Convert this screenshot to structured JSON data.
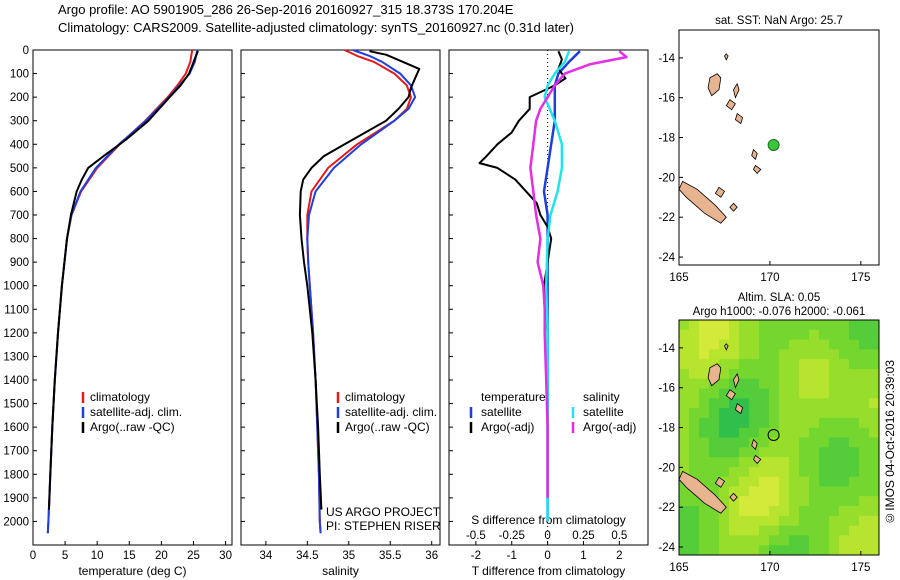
{
  "header": {
    "line1": "Argo profile: AO 5901905_286 26-Sep-2016 20160927_315 18.373S 170.204E",
    "line2": "Climatology: CARS2009. Satellite-adjusted climatology: synTS_20160927.nc (0.31d later)"
  },
  "stamp": "©IMOS 04-Oct-2016 20:39:03",
  "colors": {
    "red": "#e41a1c",
    "blue": "#1f3fd8",
    "black": "#000000",
    "cyan": "#21e4e9",
    "magenta": "#e42de4",
    "land": "#e8b48f",
    "float": "#3cc43c"
  },
  "chart_data": [
    {
      "type": "line",
      "ylim": [
        2100,
        0
      ],
      "yticks": [
        0,
        100,
        200,
        300,
        400,
        500,
        600,
        700,
        800,
        900,
        1000,
        1100,
        1200,
        1300,
        1400,
        1500,
        1600,
        1700,
        1800,
        1900,
        2000
      ],
      "xlim": [
        0,
        31
      ],
      "xticks": [
        0,
        5,
        10,
        15,
        20,
        25,
        30
      ],
      "xlabel": "temperature (deg C)",
      "legend": [
        "climatology",
        "satellite-adj. clim.",
        "Argo(..raw -QC)"
      ],
      "series": [
        {
          "name": "climatology",
          "color": "red",
          "depth": [
            0,
            50,
            100,
            150,
            200,
            300,
            400,
            500,
            600,
            700,
            800,
            1000,
            1200,
            1400,
            1600,
            1800,
            2000,
            2050
          ],
          "values": [
            24.8,
            24.5,
            23.8,
            22.5,
            21.0,
            17.5,
            13.5,
            10.0,
            7.5,
            6.0,
            5.3,
            4.5,
            3.9,
            3.4,
            3.0,
            2.7,
            2.4,
            2.3
          ]
        },
        {
          "name": "satellite-adj. clim.",
          "color": "blue",
          "depth": [
            0,
            50,
            100,
            150,
            200,
            300,
            400,
            500,
            600,
            700,
            800,
            1000,
            1200,
            1400,
            1600,
            1800,
            2000,
            2050
          ],
          "values": [
            25.6,
            25.2,
            24.4,
            22.8,
            21.2,
            17.6,
            13.4,
            9.8,
            7.4,
            6.0,
            5.3,
            4.5,
            3.9,
            3.4,
            3.0,
            2.7,
            2.4,
            2.3
          ]
        },
        {
          "name": "Argo(..raw -QC)",
          "color": "black",
          "depth": [
            5,
            30,
            60,
            100,
            150,
            200,
            300,
            380,
            450,
            500,
            550,
            600,
            700,
            800,
            1000,
            1200,
            1400,
            1600,
            1800,
            1950
          ],
          "values": [
            25.7,
            25.3,
            24.9,
            24.3,
            23.0,
            21.3,
            18.0,
            14.5,
            11.0,
            8.6,
            7.6,
            6.8,
            5.9,
            5.3,
            4.5,
            3.9,
            3.4,
            3.0,
            2.7,
            2.5
          ]
        }
      ]
    },
    {
      "type": "line",
      "ylim": [
        2100,
        0
      ],
      "xlim": [
        33.7,
        36.1
      ],
      "xticks": [
        34,
        34.5,
        35,
        35.5,
        36
      ],
      "xlabel": "salinity",
      "legend": [
        "climatology",
        "satellite-adj. clim.",
        "Argo(..raw -QC)"
      ],
      "annotation": [
        "US ARGO PROJECT",
        "PI: STEPHEN RISER"
      ],
      "series": [
        {
          "name": "climatology",
          "color": "red",
          "depth": [
            0,
            25,
            50,
            100,
            150,
            200,
            250,
            300,
            400,
            500,
            600,
            700,
            800,
            900,
            1000,
            1200,
            1400,
            1600,
            1800,
            2000,
            2050
          ],
          "values": [
            34.95,
            35.1,
            35.3,
            35.55,
            35.7,
            35.75,
            35.7,
            35.55,
            35.1,
            34.75,
            34.55,
            34.5,
            34.5,
            34.51,
            34.53,
            34.57,
            34.6,
            34.62,
            34.64,
            34.65,
            34.66
          ]
        },
        {
          "name": "satellite-adj. clim.",
          "color": "blue",
          "depth": [
            0,
            25,
            50,
            100,
            150,
            200,
            250,
            300,
            400,
            500,
            600,
            700,
            800,
            900,
            1000,
            1200,
            1400,
            1600,
            1800,
            2000,
            2050
          ],
          "values": [
            35.05,
            35.25,
            35.4,
            35.62,
            35.75,
            35.8,
            35.72,
            35.55,
            35.15,
            34.82,
            34.6,
            34.52,
            34.5,
            34.51,
            34.53,
            34.57,
            34.6,
            34.62,
            34.64,
            34.65,
            34.66
          ]
        },
        {
          "name": "Argo(..raw -QC)",
          "color": "black",
          "depth": [
            5,
            20,
            50,
            80,
            120,
            160,
            200,
            250,
            300,
            400,
            450,
            500,
            550,
            600,
            700,
            800,
            900,
            1000,
            1200,
            1400,
            1600,
            1800,
            1950
          ],
          "values": [
            35.25,
            35.45,
            35.65,
            35.85,
            35.8,
            35.75,
            35.72,
            35.6,
            35.45,
            34.95,
            34.7,
            34.55,
            34.45,
            34.42,
            34.41,
            34.43,
            34.46,
            34.5,
            34.56,
            34.6,
            34.63,
            34.65,
            34.67
          ]
        }
      ]
    },
    {
      "type": "line",
      "ylim": [
        2100,
        0
      ],
      "xlim_T": [
        -2.75,
        2.8
      ],
      "xticks_T": [
        -2,
        -1,
        0,
        1,
        2
      ],
      "xlabel_T": "T difference from climatology",
      "xticks_S": [
        -0.5,
        -0.25,
        0,
        0.25,
        0.5
      ],
      "xticklabels_S": [
        "-0.5",
        "-0.25",
        "0",
        "0.25",
        "0.5"
      ],
      "xlabel_S": "S difference from climatology",
      "legend_left_title": "temperature",
      "legend_right_title": "salinity",
      "legend": [
        "satellite",
        "Argo(-adj)",
        "satellite",
        "Argo(-adj)"
      ],
      "series": [
        {
          "name": "T satellite",
          "color": "blue",
          "axis": "T",
          "depth": [
            5,
            50,
            100,
            150,
            200,
            300,
            400,
            500,
            600,
            700,
            800,
            900,
            1000,
            1200,
            1400,
            1600,
            1800,
            2000
          ],
          "values": [
            0.9,
            0.6,
            0.3,
            0.2,
            0.2,
            0.2,
            0.1,
            0.0,
            -0.1,
            0.0,
            0.0,
            0.0,
            0.0,
            0.0,
            0.0,
            0.0,
            0.0,
            0.0
          ]
        },
        {
          "name": "T Argo(-adj)",
          "color": "black",
          "axis": "T",
          "depth": [
            5,
            40,
            80,
            120,
            150,
            200,
            250,
            300,
            350,
            400,
            450,
            480,
            500,
            550,
            600,
            650,
            700,
            750,
            800,
            900,
            1000,
            1200,
            1400,
            1600,
            1800,
            1950
          ],
          "values": [
            0.3,
            0.4,
            0.3,
            0.5,
            0.2,
            -0.5,
            -0.5,
            -0.8,
            -1.0,
            -1.4,
            -1.7,
            -1.9,
            -1.4,
            -0.9,
            -0.6,
            -0.3,
            -0.2,
            0.0,
            0.1,
            0.0,
            -0.1,
            0.0,
            0.0,
            0.0,
            0.0,
            0.0
          ]
        },
        {
          "name": "S satellite",
          "color": "cyan",
          "axis": "S",
          "depth": [
            5,
            50,
            100,
            150,
            200,
            300,
            400,
            500,
            600,
            700,
            800,
            1000,
            1200,
            1400,
            1600,
            1800,
            2000
          ],
          "values": [
            0.15,
            0.12,
            0.05,
            0.0,
            -0.02,
            0.05,
            0.1,
            0.1,
            0.07,
            0.02,
            0.0,
            -0.01,
            0.0,
            0.0,
            0.0,
            0.0,
            0.0
          ]
        },
        {
          "name": "S Argo(-adj)",
          "color": "magenta",
          "axis": "S",
          "depth": [
            5,
            30,
            60,
            100,
            150,
            200,
            250,
            300,
            400,
            500,
            600,
            700,
            800,
            900,
            1000,
            1100,
            1200,
            1400,
            1600,
            1800,
            1900
          ],
          "values": [
            0.5,
            0.55,
            0.3,
            0.12,
            0.05,
            0.0,
            -0.05,
            -0.08,
            -0.1,
            -0.12,
            -0.1,
            -0.08,
            -0.05,
            -0.07,
            -0.03,
            -0.02,
            -0.02,
            -0.01,
            0.0,
            0.0,
            0.0
          ]
        }
      ]
    },
    {
      "type": "map",
      "title": "sat. SST: NaN Argo: 25.7",
      "xlim": [
        165,
        176
      ],
      "ylim": [
        -24.4,
        -12.6
      ],
      "xticks": [
        165,
        170,
        175
      ],
      "yticks": [
        -14,
        -16,
        -18,
        -20,
        -22,
        -24
      ],
      "float": {
        "lon": 170.204,
        "lat": -18.373
      }
    },
    {
      "type": "heatmap",
      "title_line1": "Altim. SLA: 0.05",
      "title_line2": "Argo h1000: -0.076 h2000: -0.061",
      "xlim": [
        165,
        176
      ],
      "ylim": [
        -24.4,
        -12.6
      ],
      "xticks": [
        165,
        170,
        175
      ],
      "yticks": [
        -14,
        -16,
        -18,
        -20,
        -22,
        -24
      ],
      "float": {
        "lon": 170.204,
        "lat": -18.373
      }
    }
  ]
}
